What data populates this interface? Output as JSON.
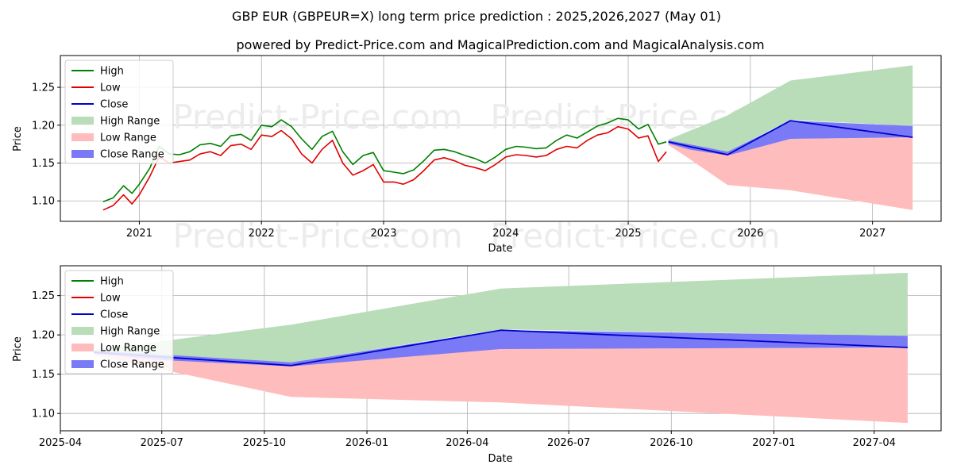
{
  "title": "GBP EUR (GBPEUR=X) long term price prediction : 2025,2026,2027 (May 01)",
  "subtitle": "powered by Predict-Price.com and MagicalPrediction.com and MagicalAnalysis.com",
  "watermark": "Predict-Price.com",
  "colors": {
    "high": "#008000",
    "low": "#e00000",
    "close": "#0000cc",
    "high_range": "#b9dcb9",
    "low_range": "#ffbcbc",
    "close_range": "#7a7af7",
    "grid": "#b0b0b0",
    "watermark": "#ececec"
  },
  "legend": [
    "High",
    "Low",
    "Close",
    "High Range",
    "Low Range",
    "Close Range"
  ],
  "chart_data": [
    {
      "type": "line",
      "title": "",
      "xlabel": "Date",
      "ylabel": "Price",
      "xlim": [
        "2020-05-10",
        "2027-07-25"
      ],
      "ylim": [
        1.073,
        1.292
      ],
      "x_ticks": [
        "2021",
        "2022",
        "2023",
        "2024",
        "2025",
        "2026",
        "2027"
      ],
      "y_ticks": [
        "1.10",
        "1.15",
        "1.20",
        "1.25"
      ],
      "grid": true,
      "legend_position": "top-left",
      "history": {
        "x": [
          "2020-09-15",
          "2020-10-15",
          "2020-11-15",
          "2020-12-10",
          "2021-01-01",
          "2021-02-01",
          "2021-03-01",
          "2021-04-01",
          "2021-05-01",
          "2021-06-01",
          "2021-07-01",
          "2021-08-01",
          "2021-09-01",
          "2021-10-01",
          "2021-11-01",
          "2021-12-01",
          "2022-01-01",
          "2022-02-01",
          "2022-03-01",
          "2022-04-01",
          "2022-05-01",
          "2022-06-01",
          "2022-07-01",
          "2022-08-01",
          "2022-09-01",
          "2022-10-01",
          "2022-11-01",
          "2022-12-01",
          "2023-01-01",
          "2023-02-01",
          "2023-03-01",
          "2023-04-01",
          "2023-05-01",
          "2023-06-01",
          "2023-07-01",
          "2023-08-01",
          "2023-09-01",
          "2023-10-01",
          "2023-11-01",
          "2023-12-01",
          "2024-01-01",
          "2024-02-01",
          "2024-03-01",
          "2024-04-01",
          "2024-05-01",
          "2024-06-01",
          "2024-07-01",
          "2024-08-01",
          "2024-09-01",
          "2024-10-01",
          "2024-11-01",
          "2024-12-01",
          "2025-01-01",
          "2025-02-01",
          "2025-03-01",
          "2025-04-01",
          "2025-04-25"
        ],
        "high": [
          1.099,
          1.104,
          1.12,
          1.11,
          1.122,
          1.143,
          1.172,
          1.162,
          1.161,
          1.165,
          1.174,
          1.176,
          1.172,
          1.186,
          1.188,
          1.18,
          1.2,
          1.198,
          1.207,
          1.198,
          1.182,
          1.168,
          1.185,
          1.192,
          1.165,
          1.148,
          1.16,
          1.164,
          1.14,
          1.138,
          1.136,
          1.141,
          1.153,
          1.167,
          1.168,
          1.165,
          1.16,
          1.156,
          1.15,
          1.158,
          1.168,
          1.172,
          1.171,
          1.169,
          1.17,
          1.18,
          1.187,
          1.183,
          1.191,
          1.199,
          1.203,
          1.209,
          1.207,
          1.195,
          1.201,
          1.175,
          1.178
        ],
        "low": [
          1.088,
          1.094,
          1.108,
          1.096,
          1.108,
          1.132,
          1.158,
          1.15,
          1.152,
          1.154,
          1.162,
          1.165,
          1.16,
          1.173,
          1.175,
          1.168,
          1.187,
          1.185,
          1.193,
          1.182,
          1.162,
          1.15,
          1.168,
          1.18,
          1.15,
          1.134,
          1.14,
          1.148,
          1.125,
          1.125,
          1.122,
          1.128,
          1.14,
          1.154,
          1.157,
          1.153,
          1.147,
          1.144,
          1.14,
          1.148,
          1.158,
          1.161,
          1.16,
          1.158,
          1.16,
          1.168,
          1.172,
          1.17,
          1.18,
          1.187,
          1.19,
          1.198,
          1.195,
          1.183,
          1.186,
          1.152,
          1.165
        ]
      },
      "forecast": {
        "x": [
          "2025-05-01",
          "2025-07-01",
          "2025-10-25",
          "2026-05-01",
          "2027-05-01"
        ],
        "close": [
          1.178,
          1.172,
          1.161,
          1.206,
          1.184
        ],
        "high_range": [
          [
            1.181,
            1.178
          ],
          [
            1.192,
            1.172
          ],
          [
            1.213,
            1.165
          ],
          [
            1.259,
            1.207
          ],
          [
            1.279,
            1.199
          ]
        ],
        "low_range": [
          [
            1.174,
            1.176
          ],
          [
            1.156,
            1.172
          ],
          [
            1.121,
            1.161
          ],
          [
            1.114,
            1.182
          ],
          [
            1.088,
            1.184
          ]
        ],
        "close_range": [
          [
            1.176,
            1.18
          ],
          [
            1.168,
            1.175
          ],
          [
            1.16,
            1.165
          ],
          [
            1.182,
            1.206
          ],
          [
            1.184,
            1.199
          ]
        ]
      }
    },
    {
      "type": "line",
      "title": "",
      "xlabel": "Date",
      "ylabel": "Price",
      "xlim": [
        "2025-04-01",
        "2027-05-31"
      ],
      "ylim": [
        1.078,
        1.288
      ],
      "x_ticks": [
        "2025-04",
        "2025-07",
        "2025-10",
        "2026-01",
        "2026-04",
        "2026-07",
        "2026-10",
        "2027-01",
        "2027-04"
      ],
      "y_ticks": [
        "1.10",
        "1.15",
        "1.20",
        "1.25"
      ],
      "grid": true,
      "legend_position": "top-left",
      "forecast": {
        "x": [
          "2025-05-01",
          "2025-07-01",
          "2025-10-25",
          "2026-05-01",
          "2027-05-01"
        ],
        "close": [
          1.178,
          1.172,
          1.161,
          1.206,
          1.184
        ],
        "high_range": [
          [
            1.181,
            1.178
          ],
          [
            1.192,
            1.172
          ],
          [
            1.213,
            1.165
          ],
          [
            1.259,
            1.207
          ],
          [
            1.279,
            1.199
          ]
        ],
        "low_range": [
          [
            1.174,
            1.176
          ],
          [
            1.156,
            1.172
          ],
          [
            1.121,
            1.161
          ],
          [
            1.114,
            1.182
          ],
          [
            1.088,
            1.184
          ]
        ],
        "close_range": [
          [
            1.176,
            1.18
          ],
          [
            1.168,
            1.175
          ],
          [
            1.16,
            1.165
          ],
          [
            1.182,
            1.206
          ],
          [
            1.184,
            1.199
          ]
        ]
      }
    }
  ]
}
